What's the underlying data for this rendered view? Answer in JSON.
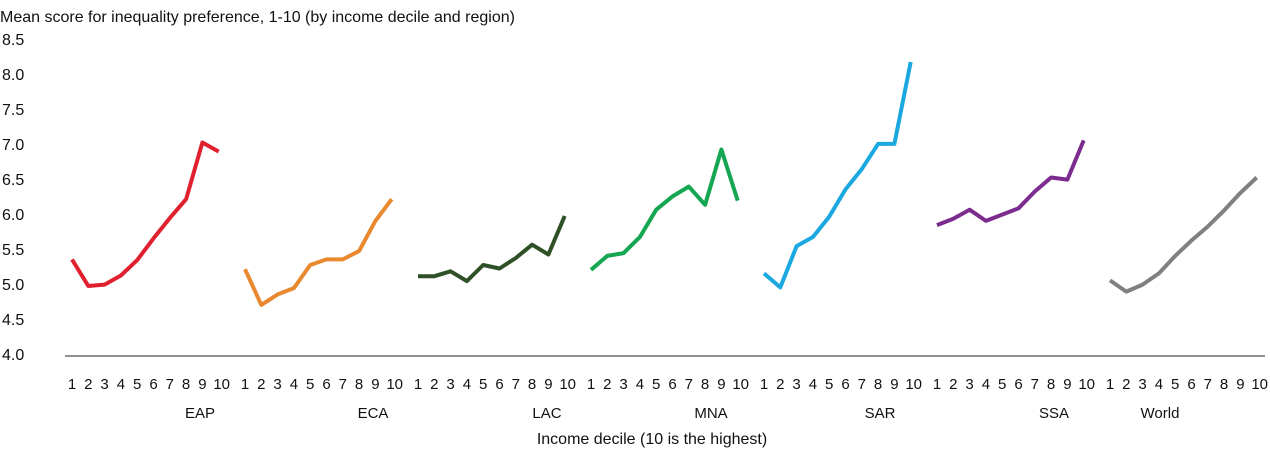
{
  "chart_data": {
    "type": "line",
    "title": "Mean score for inequality preference, 1-10 (by income decile and region)",
    "x_label": "Income decile (10 is the highest)",
    "categories": [
      "1",
      "2",
      "3",
      "4",
      "5",
      "6",
      "7",
      "8",
      "9",
      "10"
    ],
    "ylim": [
      4,
      8.5
    ],
    "yticks": [
      {
        "value": 4,
        "label": "4.0"
      },
      4.5,
      {
        "value": 5,
        "label": "5.0"
      },
      5.5,
      {
        "value": 6,
        "label": "6.0"
      },
      6.5,
      {
        "value": 7,
        "label": "7.0"
      },
      7.5,
      {
        "value": 8,
        "label": "8.0"
      },
      8.5
    ],
    "series": [
      {
        "name": "EAP",
        "color": "#e0202e",
        "values": [
          5.38,
          5.0,
          5.02,
          5.15,
          5.37,
          5.68,
          5.97,
          6.24,
          7.05,
          6.92
        ]
      },
      {
        "name": "ECA",
        "color": "#e8892f",
        "values": [
          5.24,
          4.73,
          4.88,
          4.97,
          5.3,
          5.38,
          5.38,
          5.5,
          5.93,
          6.24
        ]
      },
      {
        "name": "LAC",
        "color": "#2f4f26",
        "values": [
          5.14,
          5.14,
          5.21,
          5.07,
          5.3,
          5.25,
          5.4,
          5.59,
          5.45,
          6.0
        ]
      },
      {
        "name": "MNA",
        "color": "#14a650",
        "values": [
          5.23,
          5.43,
          5.47,
          5.7,
          6.09,
          6.28,
          6.42,
          6.16,
          6.95,
          6.22
        ]
      },
      {
        "name": "SAR",
        "color": "#1ba8e0",
        "values": [
          5.18,
          4.98,
          5.57,
          5.7,
          5.99,
          6.38,
          6.67,
          7.03,
          7.03,
          8.2
        ]
      },
      {
        "name": "SSA",
        "color": "#7b2c8e",
        "values": [
          5.87,
          5.96,
          6.09,
          5.93,
          6.02,
          6.11,
          6.35,
          6.55,
          6.52,
          7.08
        ]
      },
      {
        "name": "World",
        "color": "#808080",
        "values": [
          5.08,
          4.92,
          5.02,
          5.18,
          5.43,
          5.65,
          5.85,
          6.08,
          6.33,
          6.55
        ]
      }
    ]
  }
}
